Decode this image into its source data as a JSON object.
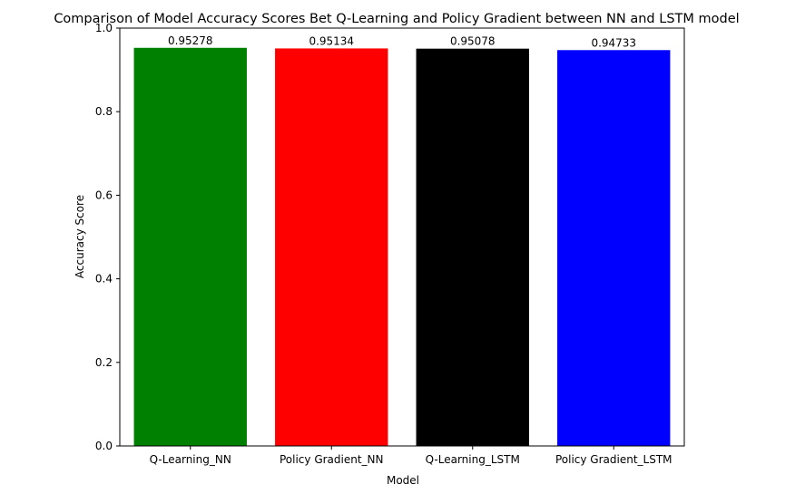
{
  "chart_data": {
    "type": "bar",
    "title": "Comparison of Model Accuracy Scores Bet Q-Learning and Policy Gradient between NN and LSTM model",
    "xlabel": "Model",
    "ylabel": "Accuracy Score",
    "categories": [
      "Q-Learning_NN",
      "Policy Gradient_NN",
      "Q-Learning_LSTM",
      "Policy Gradient_LSTM"
    ],
    "values": [
      0.95278,
      0.95134,
      0.95078,
      0.94733
    ],
    "data_labels": [
      "0.95278",
      "0.95134",
      "0.95078",
      "0.94733"
    ],
    "colors": [
      "#008000",
      "#ff0000",
      "#000000",
      "#0000ff"
    ],
    "ylim": [
      0,
      1.0
    ],
    "yticks": [
      0.0,
      0.2,
      0.4,
      0.6,
      0.8,
      1.0
    ],
    "ytick_labels": [
      "0.0",
      "0.2",
      "0.4",
      "0.6",
      "0.8",
      "1.0"
    ],
    "grid": false,
    "legend": "none"
  }
}
